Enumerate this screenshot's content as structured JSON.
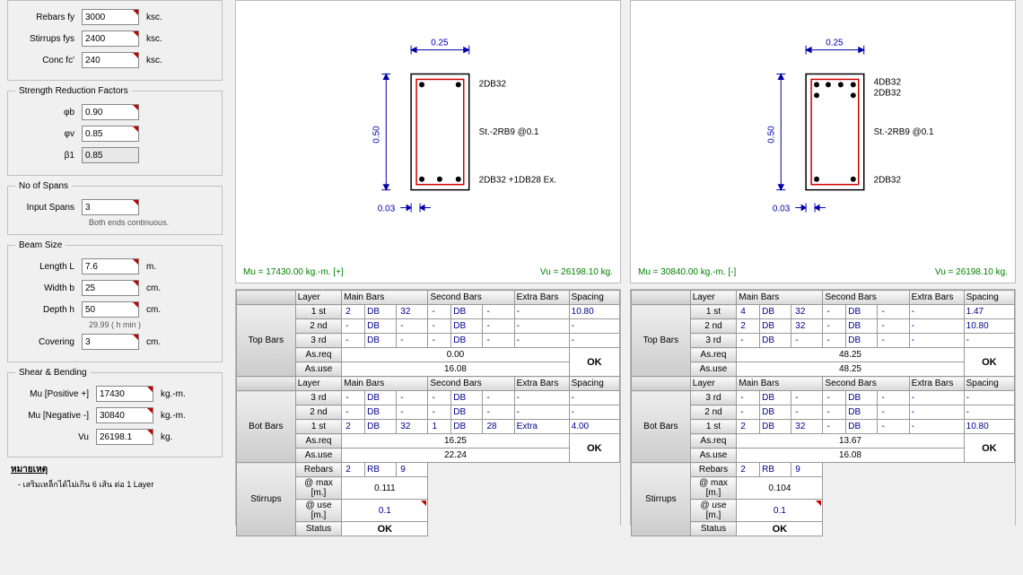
{
  "materials": {
    "rebars_fy": {
      "label": "Rebars fy",
      "value": "3000",
      "unit": "ksc."
    },
    "stirrups_fys": {
      "label": "Stirrups fys",
      "value": "2400",
      "unit": "ksc."
    },
    "conc_fc": {
      "label": "Conc fc'",
      "value": "240",
      "unit": "ksc."
    }
  },
  "srf": {
    "legend": "Strength Reduction Factors",
    "phi_b": {
      "label": "φb",
      "value": "0.90"
    },
    "phi_v": {
      "label": "φv",
      "value": "0.85"
    },
    "beta1": {
      "label": "β1",
      "value": "0.85"
    }
  },
  "spans": {
    "legend": "No of Spans",
    "label": "Input Spans",
    "value": "3",
    "hint": "Both ends continuous."
  },
  "beam": {
    "legend": "Beam Size",
    "length": {
      "label": "Length  L",
      "value": "7.6",
      "unit": "m."
    },
    "width": {
      "label": "Width  b",
      "value": "25",
      "unit": "cm."
    },
    "depth": {
      "label": "Depth  h",
      "value": "50",
      "unit": "cm.",
      "hint": "29.99  ( h min )"
    },
    "cover": {
      "label": "Covering",
      "value": "3",
      "unit": "cm."
    }
  },
  "shear": {
    "legend": "Shear & Bending",
    "mu_pos": {
      "label": "Mu [Positive +]",
      "value": "17430",
      "unit": "kg.-m."
    },
    "mu_neg": {
      "label": "Mu [Negative -]",
      "value": "30840",
      "unit": "kg.-m."
    },
    "vu": {
      "label": "Vu",
      "value": "26198.1",
      "unit": "kg."
    }
  },
  "notes": {
    "title": "หมายเหตุ",
    "body": "- เสริมเหล็กได้ไม่เกิน 6 เส้น ต่อ 1 Layer"
  },
  "section_left": {
    "width_dim": "0.25",
    "height_dim": "0.50",
    "cover_dim": "0.03",
    "top_label": "2DB32",
    "bot_label": "2DB32 +1DB28 Ex.",
    "stirrup_label": "St.-2RB9  @0.1",
    "mu_text": "Mu   =    17430.00    kg.-m.   [+]",
    "vu_text": "Vu   =     26198.10    kg.",
    "colors": {
      "stirrup": "#cc0000",
      "bar": "#000",
      "dim": "#0000aa"
    }
  },
  "section_right": {
    "width_dim": "0.25",
    "height_dim": "0.50",
    "cover_dim": "0.03",
    "top_label": "4DB32",
    "top_label2": "2DB32",
    "bot_label": "2DB32",
    "stirrup_label": "St.-2RB9  @0.1",
    "mu_text": "Mu   =    30840.00    kg.-m.   [-]",
    "vu_text": "Vu   =     26198.10    kg.",
    "colors": {
      "stirrup": "#cc0000",
      "bar": "#000",
      "dim": "#0000aa"
    }
  },
  "table_headers": {
    "layer": "Layer",
    "main": "Main Bars",
    "second": "Second Bars",
    "extra": "Extra Bars",
    "spacing": "Spacing",
    "top": "Top  Bars",
    "bot": "Bot  Bars",
    "stir": "Stirrups",
    "asreq": "As.req",
    "asuse": "As.use",
    "rebars": "Rebars",
    "atmax": "@ max [m.]",
    "atuse": "@ use [m.]",
    "status": "Status",
    "ok": "OK"
  },
  "table_left": {
    "top": [
      {
        "layer": "1 st",
        "mn": "2",
        "mdb": "DB",
        "msz": "32",
        "sn": "-",
        "sdb": "DB",
        "ssz": "-",
        "ex": "-",
        "sp": "10.80"
      },
      {
        "layer": "2 nd",
        "mn": "-",
        "mdb": "DB",
        "msz": "-",
        "sn": "-",
        "sdb": "DB",
        "ssz": "-",
        "ex": "-",
        "sp": "-"
      },
      {
        "layer": "3 rd",
        "mn": "-",
        "mdb": "DB",
        "msz": "-",
        "sn": "-",
        "sdb": "DB",
        "ssz": "-",
        "ex": "-",
        "sp": "-"
      }
    ],
    "top_asreq": "0.00",
    "top_asuse": "16.08",
    "bot": [
      {
        "layer": "3 rd",
        "mn": "-",
        "mdb": "DB",
        "msz": "-",
        "sn": "-",
        "sdb": "DB",
        "ssz": "-",
        "ex": "-",
        "sp": "-"
      },
      {
        "layer": "2 nd",
        "mn": "-",
        "mdb": "DB",
        "msz": "-",
        "sn": "-",
        "sdb": "DB",
        "ssz": "-",
        "ex": "-",
        "sp": "-"
      },
      {
        "layer": "1 st",
        "mn": "2",
        "mdb": "DB",
        "msz": "32",
        "sn": "1",
        "sdb": "DB",
        "ssz": "28",
        "ex": "Extra",
        "sp": "4.00"
      }
    ],
    "bot_asreq": "16.25",
    "bot_asuse": "22.24",
    "stir": {
      "n": "2",
      "rb": "RB",
      "sz": "9",
      "max": "0.111",
      "use": "0.1",
      "status": "OK"
    }
  },
  "table_right": {
    "top": [
      {
        "layer": "1 st",
        "mn": "4",
        "mdb": "DB",
        "msz": "32",
        "sn": "-",
        "sdb": "DB",
        "ssz": "-",
        "ex": "-",
        "sp": "1.47"
      },
      {
        "layer": "2 nd",
        "mn": "2",
        "mdb": "DB",
        "msz": "32",
        "sn": "-",
        "sdb": "DB",
        "ssz": "-",
        "ex": "-",
        "sp": "10.80"
      },
      {
        "layer": "3 rd",
        "mn": "-",
        "mdb": "DB",
        "msz": "-",
        "sn": "-",
        "sdb": "DB",
        "ssz": "-",
        "ex": "-",
        "sp": "-"
      }
    ],
    "top_asreq": "48.25",
    "top_asuse": "48.25",
    "bot": [
      {
        "layer": "3 rd",
        "mn": "-",
        "mdb": "DB",
        "msz": "-",
        "sn": "-",
        "sdb": "DB",
        "ssz": "-",
        "ex": "-",
        "sp": "-"
      },
      {
        "layer": "2 nd",
        "mn": "-",
        "mdb": "DB",
        "msz": "-",
        "sn": "-",
        "sdb": "DB",
        "ssz": "-",
        "ex": "-",
        "sp": "-"
      },
      {
        "layer": "1 st",
        "mn": "2",
        "mdb": "DB",
        "msz": "32",
        "sn": "-",
        "sdb": "DB",
        "ssz": "-",
        "ex": "-",
        "sp": "10.80"
      }
    ],
    "bot_asreq": "13.67",
    "bot_asuse": "16.08",
    "stir": {
      "n": "2",
      "rb": "RB",
      "sz": "9",
      "max": "0.104",
      "use": "0.1",
      "status": "OK"
    }
  }
}
